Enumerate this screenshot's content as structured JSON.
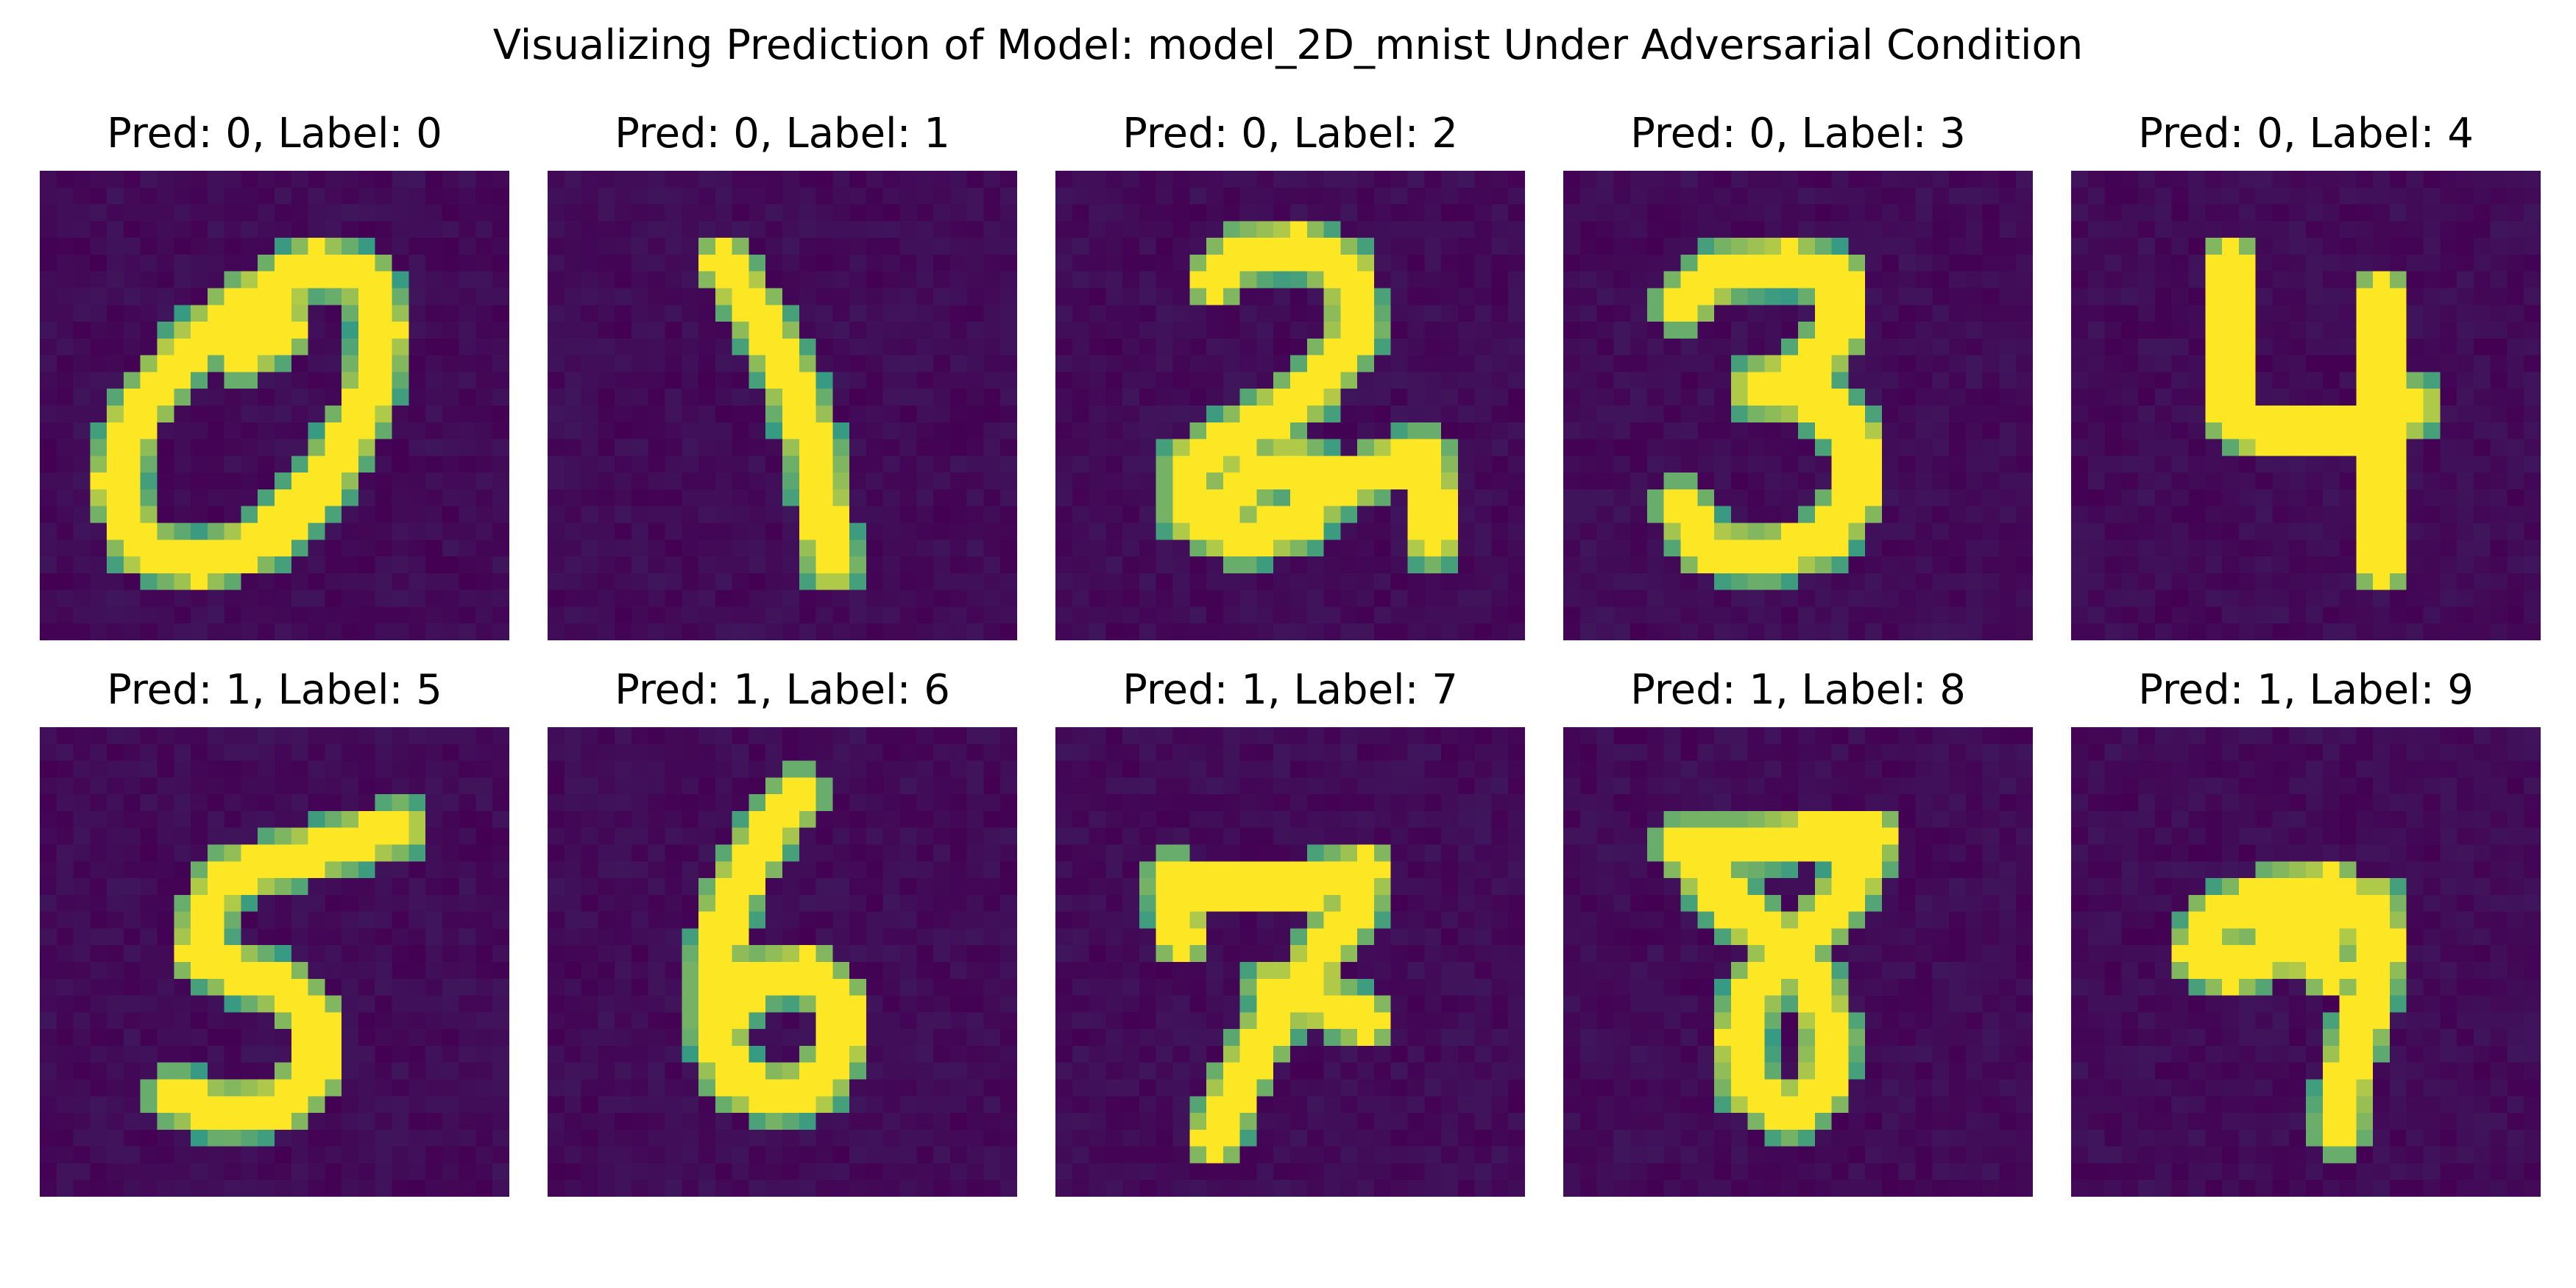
{
  "figure": {
    "title": "Visualizing Prediction of Model: model_2D_mnist Under Adversarial Condition"
  },
  "colors": {
    "background": "#440154",
    "mid": "#21918c",
    "high": "#fde725"
  },
  "panels": [
    {
      "title": "Pred: 0, Label: 0",
      "pred": 0,
      "label": 0
    },
    {
      "title": "Pred: 0, Label: 1",
      "pred": 0,
      "label": 1
    },
    {
      "title": "Pred: 0, Label: 2",
      "pred": 0,
      "label": 2
    },
    {
      "title": "Pred: 0, Label: 3",
      "pred": 0,
      "label": 3
    },
    {
      "title": "Pred: 0, Label: 4",
      "pred": 0,
      "label": 4
    },
    {
      "title": "Pred: 1, Label: 5",
      "pred": 1,
      "label": 5
    },
    {
      "title": "Pred: 1, Label: 6",
      "pred": 1,
      "label": 6
    },
    {
      "title": "Pred: 1, Label: 7",
      "pred": 1,
      "label": 7
    },
    {
      "title": "Pred: 1, Label: 8",
      "pred": 1,
      "label": 8
    },
    {
      "title": "Pred: 1, Label: 9",
      "pred": 1,
      "label": 9
    }
  ]
}
